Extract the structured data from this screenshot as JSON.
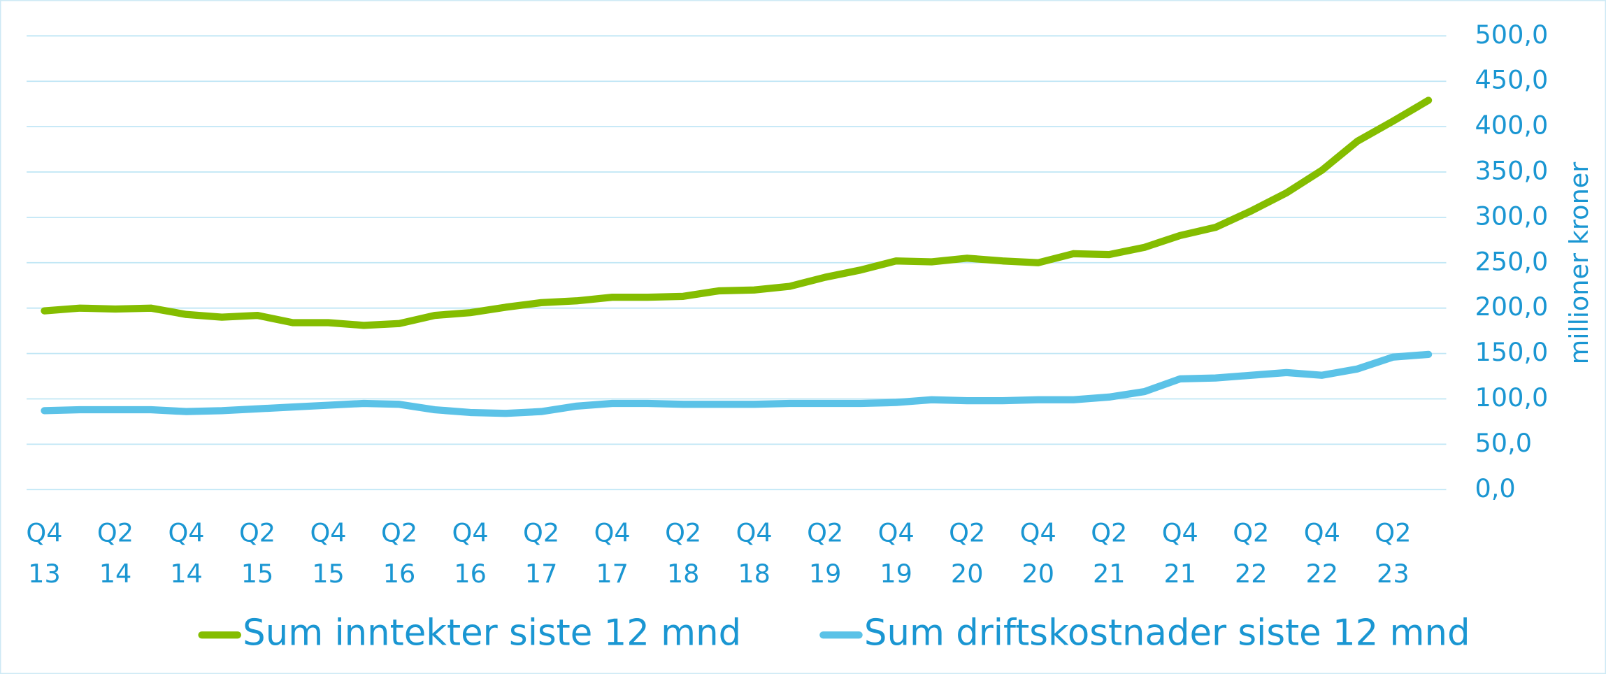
{
  "chart_data": {
    "type": "line",
    "y_axis_label": "millioner kroner",
    "categories": [
      "Q4 13",
      null,
      "Q2 14",
      null,
      "Q4 14",
      null,
      "Q2 15",
      null,
      "Q4 15",
      null,
      "Q2 16",
      null,
      "Q4 16",
      null,
      "Q2 17",
      null,
      "Q4 17",
      null,
      "Q2 18",
      null,
      "Q4 18",
      null,
      "Q2 19",
      null,
      "Q4 19",
      null,
      "Q2 20",
      null,
      "Q4 20",
      null,
      "Q2 21",
      null,
      "Q4 21",
      null,
      "Q2 22",
      null,
      "Q4 22",
      null,
      "Q2 23",
      null
    ],
    "series": [
      {
        "name": "Sum inntekter siste 12 mnd",
        "color": "#84bd00",
        "values": [
          197,
          200,
          199,
          200,
          193,
          190,
          192,
          184,
          184,
          181,
          183,
          192,
          195,
          201,
          206,
          208,
          212,
          212,
          213,
          219,
          220,
          224,
          234,
          242,
          252,
          251,
          255,
          252,
          250,
          260,
          259,
          267,
          280,
          289,
          307,
          327,
          352,
          384,
          406,
          429
        ]
      },
      {
        "name": "Sum driftskostnader siste 12 mnd",
        "color": "#5bc2e7",
        "values": [
          87,
          88,
          88,
          88,
          86,
          87,
          89,
          91,
          93,
          95,
          94,
          88,
          85,
          84,
          86,
          92,
          95,
          95,
          94,
          94,
          94,
          95,
          95,
          95,
          96,
          99,
          98,
          98,
          99,
          99,
          102,
          108,
          122,
          123,
          126,
          129,
          126,
          133,
          146,
          149
        ]
      }
    ],
    "ylim": [
      0,
      500
    ],
    "yticks": [
      {
        "value": 0,
        "label": "0,0"
      },
      {
        "value": 50,
        "label": "50,0"
      },
      {
        "value": 100,
        "label": "100,0"
      },
      {
        "value": 150,
        "label": "150,0"
      },
      {
        "value": 200,
        "label": "200,0"
      },
      {
        "value": 250,
        "label": "250,0"
      },
      {
        "value": 300,
        "label": "300,0"
      },
      {
        "value": 350,
        "label": "350,0"
      },
      {
        "value": 400,
        "label": "400,0"
      },
      {
        "value": 450,
        "label": "450,0"
      },
      {
        "value": 500,
        "label": "500,0"
      }
    ],
    "y_axis_side": "right",
    "grid": true,
    "legend": "bottom"
  }
}
